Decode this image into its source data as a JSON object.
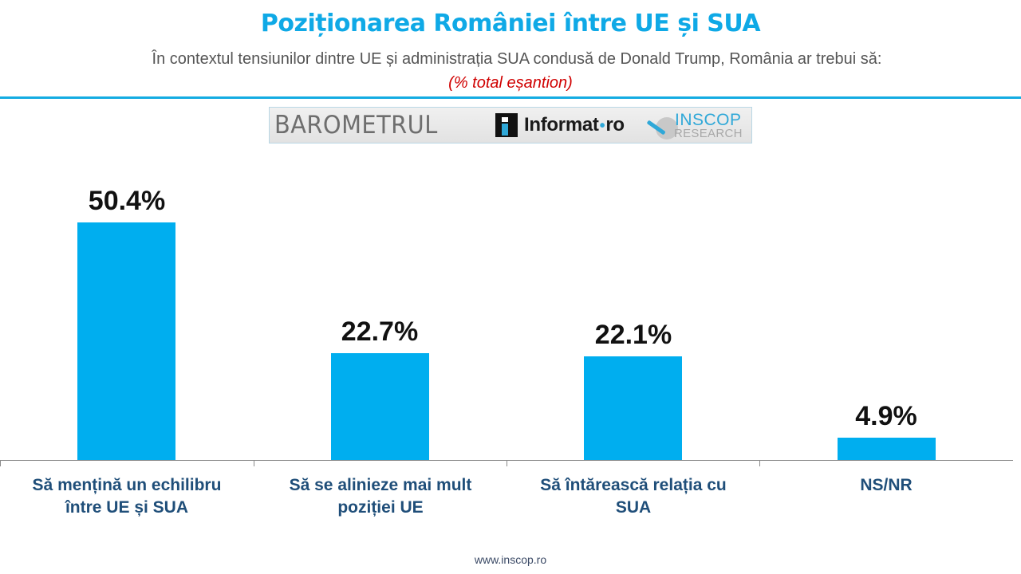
{
  "header": {
    "title": "Poziționarea României între UE și SUA",
    "subtitle": "În contextul tensiunilor dintre UE și administrația SUA condusă de Donald Trump, România ar trebui să:",
    "note": "(% total eșantion)",
    "colors": {
      "title": "#0fa9e6",
      "subtitle": "#555555",
      "note": "#d00000",
      "rule": "#14ace2"
    }
  },
  "logos": {
    "barometru": "BAROMETRUL",
    "informat": "Informat",
    "informat_dot": "•",
    "informat_tld": "ro",
    "inscop_name": "INSCOP",
    "inscop_sub": "RESEARCH"
  },
  "chart_data": {
    "type": "bar",
    "title": "Poziționarea României între UE și SUA",
    "subtitle": "În contextul tensiunilor dintre UE și administrația SUA condusă de Donald Trump, România ar trebui să:",
    "unit_note": "(% total eșantion)",
    "xlabel": "",
    "ylabel": "",
    "ylim": [
      0,
      55
    ],
    "grid": false,
    "legend": null,
    "bar_color": "#00aeef",
    "categories": [
      "Să mențină un echilibru între UE și SUA",
      "Să se alinieze mai mult poziției UE",
      "Să întărească relația cu SUA",
      "NS/NR"
    ],
    "values": [
      50.4,
      22.7,
      22.1,
      4.9
    ],
    "value_labels": [
      "50.4%",
      "22.7%",
      "22.1%",
      "4.9%"
    ]
  },
  "category_labels": [
    {
      "line1": "Să mențină un echilibru",
      "line2": "între UE și SUA"
    },
    {
      "line1": "Să se alinieze mai mult",
      "line2": "poziției UE"
    },
    {
      "line1": "Să întărească relația cu",
      "line2": "SUA"
    },
    {
      "line1": "NS/NR",
      "line2": ""
    }
  ],
  "footer": {
    "url": "www.inscop.ro"
  }
}
